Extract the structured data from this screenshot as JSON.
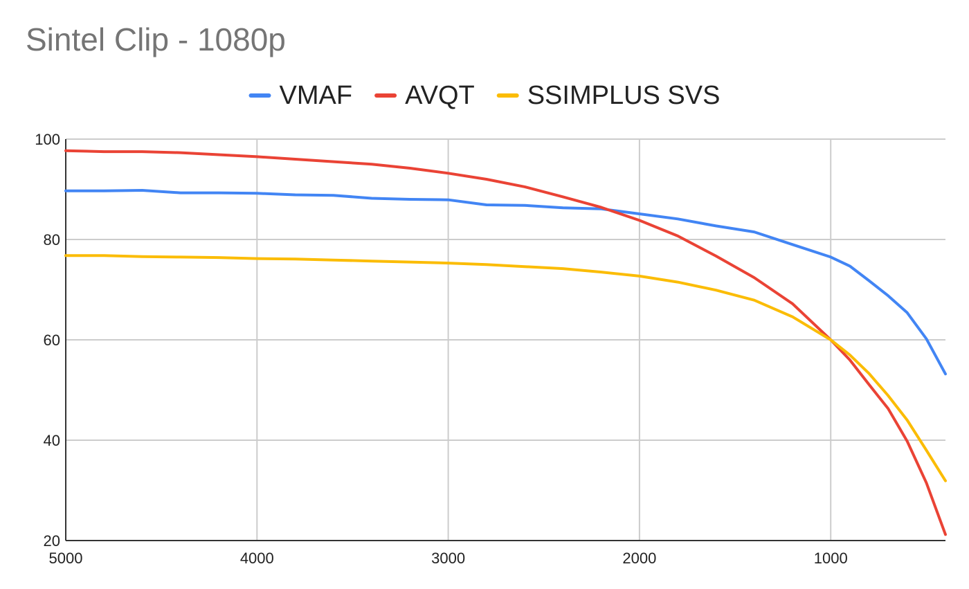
{
  "chart_data": {
    "type": "line",
    "title": "Sintel Clip - 1080p",
    "xlabel": "",
    "ylabel": "",
    "x_reversed": true,
    "xlim": [
      5000,
      400
    ],
    "ylim": [
      20,
      100
    ],
    "x_ticks": [
      5000,
      4000,
      3000,
      2000,
      1000
    ],
    "y_ticks": [
      20,
      40,
      60,
      80,
      100
    ],
    "grid": true,
    "legend_position": "top",
    "x": [
      5000,
      4800,
      4600,
      4400,
      4200,
      4000,
      3800,
      3600,
      3400,
      3200,
      3000,
      2800,
      2600,
      2400,
      2200,
      2000,
      1800,
      1600,
      1400,
      1200,
      1000,
      900,
      800,
      700,
      600,
      500,
      400
    ],
    "series": [
      {
        "name": "VMAF",
        "color": "#4285f4",
        "values": [
          89.7,
          89.7,
          89.8,
          89.3,
          89.3,
          89.2,
          88.9,
          88.8,
          88.2,
          88.0,
          87.9,
          86.9,
          86.8,
          86.3,
          86.1,
          85.1,
          84.1,
          82.7,
          81.5,
          79.0,
          76.5,
          74.7,
          71.8,
          68.8,
          65.4,
          60.2,
          53.2
        ]
      },
      {
        "name": "AVQT",
        "color": "#ea4335",
        "values": [
          97.7,
          97.5,
          97.5,
          97.3,
          96.9,
          96.5,
          96.0,
          95.5,
          95.0,
          94.2,
          93.2,
          92.0,
          90.5,
          88.5,
          86.4,
          83.8,
          80.7,
          76.7,
          72.4,
          67.2,
          60.0,
          56.0,
          51.1,
          46.3,
          39.8,
          31.5,
          21.2
        ]
      },
      {
        "name": "SSIMPLUS SVS",
        "color": "#fbbc04",
        "values": [
          76.8,
          76.8,
          76.6,
          76.5,
          76.4,
          76.2,
          76.1,
          75.9,
          75.7,
          75.5,
          75.3,
          75.0,
          74.6,
          74.2,
          73.5,
          72.7,
          71.5,
          69.9,
          67.9,
          64.6,
          60.0,
          57.0,
          53.3,
          48.9,
          44.0,
          38.0,
          31.9
        ]
      }
    ]
  }
}
